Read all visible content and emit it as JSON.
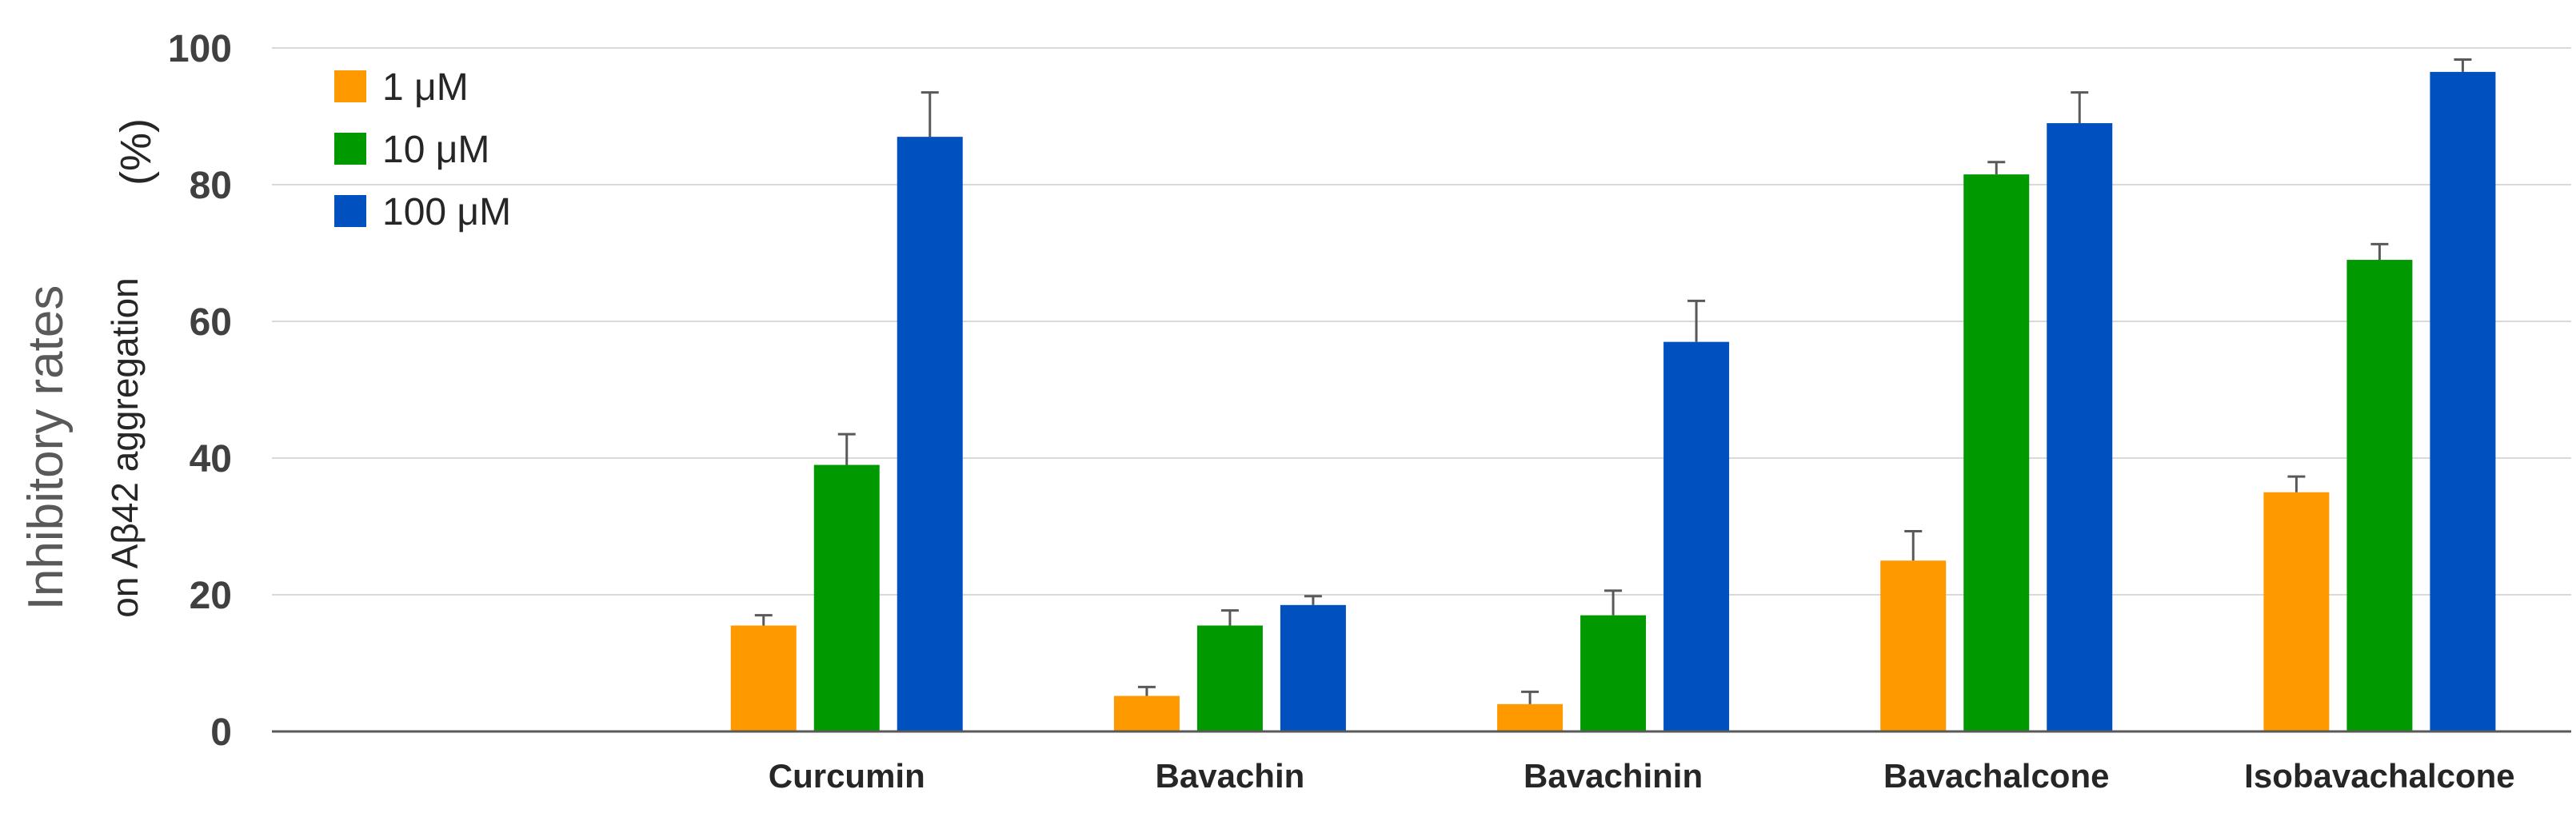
{
  "chart_data": {
    "type": "bar",
    "ylabel_main": "Inhibitory rates",
    "ylabel_unit": "(%)",
    "ylabel_sub": "on Aβ42 aggregation",
    "ylim": [
      0,
      100
    ],
    "yticks": [
      "0",
      "20",
      "40",
      "60",
      "80",
      "100"
    ],
    "grid": "horizontal",
    "legend_position": "top-left",
    "categories": [
      "",
      "Curcumin",
      "Bavachin",
      "Bavachinin",
      "Bavachalcone",
      "Isobavachalcone"
    ],
    "series": [
      {
        "name": "1 μM",
        "color": "#ff9900",
        "values": [
          null,
          15.5,
          5.2,
          4.0,
          25.0,
          35.0
        ],
        "errors": [
          null,
          1.5,
          1.3,
          1.8,
          4.3,
          2.3
        ]
      },
      {
        "name": "10 μM",
        "color": "#009900",
        "values": [
          null,
          39.0,
          15.5,
          17.0,
          81.5,
          69.0
        ],
        "errors": [
          null,
          4.5,
          2.2,
          3.6,
          1.8,
          2.3
        ]
      },
      {
        "name": "100 μM",
        "color": "#0050c0",
        "values": [
          null,
          87.0,
          18.5,
          57.0,
          89.0,
          96.5
        ],
        "errors": [
          null,
          6.5,
          1.3,
          6.0,
          4.5,
          1.8
        ]
      }
    ]
  }
}
